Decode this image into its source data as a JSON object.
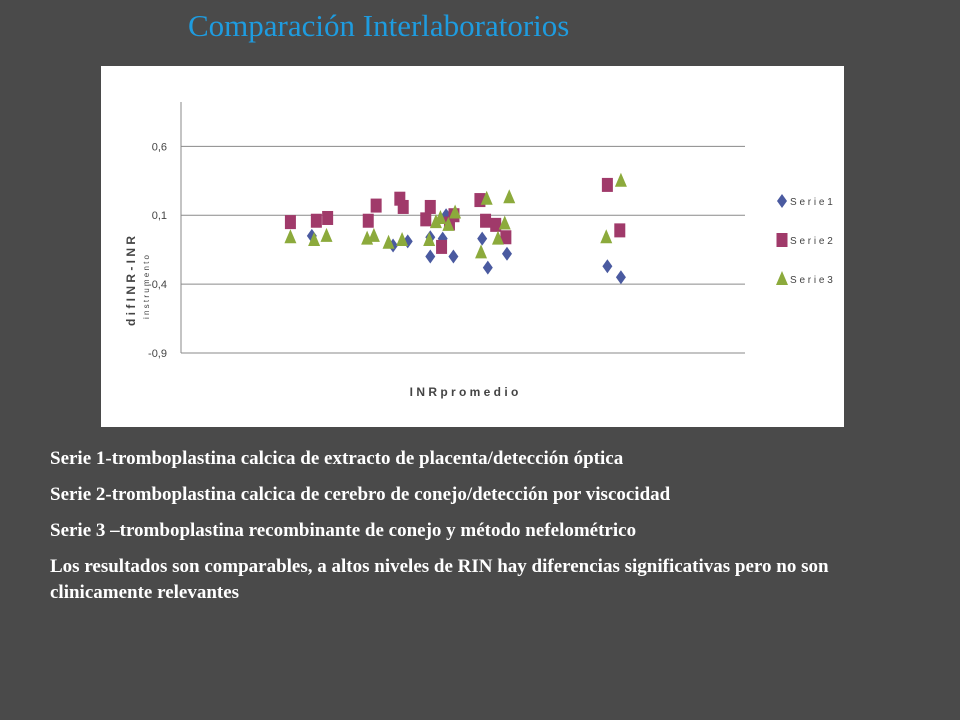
{
  "slide": {
    "title": "Comparación   Interlaboratorios"
  },
  "chart_data": {
    "type": "scatter",
    "title": "",
    "xlabel": "I N R  p r o m e d i o",
    "ylabel": "d i f  I N R  -  I N R",
    "ylabel_sub": "i n s t r u m e n t o",
    "xlim": [
      0,
      100
    ],
    "ylim": [
      -0.9,
      0.9
    ],
    "yticks": [
      0.6,
      0.1,
      -0.4,
      -0.9
    ],
    "ytick_labels": [
      "0,6",
      "0,1",
      "-0,4",
      "-0,9"
    ],
    "grid": "horizontal",
    "legend_position": "right",
    "series": [
      {
        "name": "S e r i e 1",
        "marker": "diamond",
        "color": "#4a5aa0",
        "points": [
          {
            "x": 23.2,
            "y": -0.05
          },
          {
            "x": 37.6,
            "y": -0.12
          },
          {
            "x": 40.2,
            "y": -0.09
          },
          {
            "x": 44.2,
            "y": -0.06
          },
          {
            "x": 44.2,
            "y": -0.2
          },
          {
            "x": 46.4,
            "y": -0.07
          },
          {
            "x": 47.0,
            "y": 0.1
          },
          {
            "x": 48.3,
            "y": -0.2
          },
          {
            "x": 53.4,
            "y": -0.07
          },
          {
            "x": 54.4,
            "y": -0.28
          },
          {
            "x": 57.8,
            "y": -0.18
          },
          {
            "x": 75.6,
            "y": -0.27
          },
          {
            "x": 78.0,
            "y": -0.35
          }
        ]
      },
      {
        "name": "S e r i e 2",
        "marker": "square",
        "color": "#a03a6a",
        "points": [
          {
            "x": 19.4,
            "y": 0.05
          },
          {
            "x": 24.0,
            "y": 0.06
          },
          {
            "x": 26.0,
            "y": 0.08
          },
          {
            "x": 33.2,
            "y": 0.06
          },
          {
            "x": 34.6,
            "y": 0.17
          },
          {
            "x": 38.8,
            "y": 0.22
          },
          {
            "x": 39.4,
            "y": 0.16
          },
          {
            "x": 43.4,
            "y": 0.07
          },
          {
            "x": 44.2,
            "y": 0.16
          },
          {
            "x": 46.2,
            "y": -0.13
          },
          {
            "x": 47.6,
            "y": 0.04
          },
          {
            "x": 48.4,
            "y": 0.1
          },
          {
            "x": 53.0,
            "y": 0.21
          },
          {
            "x": 54.0,
            "y": 0.06
          },
          {
            "x": 55.8,
            "y": 0.03
          },
          {
            "x": 57.6,
            "y": -0.06
          },
          {
            "x": 75.6,
            "y": 0.32
          },
          {
            "x": 77.8,
            "y": -0.01
          }
        ]
      },
      {
        "name": "S e r i e 3",
        "marker": "triangle",
        "color": "#8caa3c",
        "points": [
          {
            "x": 19.4,
            "y": -0.06
          },
          {
            "x": 23.6,
            "y": -0.08
          },
          {
            "x": 25.8,
            "y": -0.05
          },
          {
            "x": 33.0,
            "y": -0.07
          },
          {
            "x": 34.2,
            "y": -0.05
          },
          {
            "x": 36.8,
            "y": -0.1
          },
          {
            "x": 39.2,
            "y": -0.08
          },
          {
            "x": 44.0,
            "y": -0.08
          },
          {
            "x": 45.2,
            "y": 0.05
          },
          {
            "x": 46.0,
            "y": 0.08
          },
          {
            "x": 47.4,
            "y": 0.03
          },
          {
            "x": 48.6,
            "y": 0.12
          },
          {
            "x": 53.2,
            "y": -0.17
          },
          {
            "x": 54.2,
            "y": 0.22
          },
          {
            "x": 56.2,
            "y": -0.07
          },
          {
            "x": 57.4,
            "y": 0.04
          },
          {
            "x": 58.2,
            "y": 0.23
          },
          {
            "x": 75.4,
            "y": -0.06
          },
          {
            "x": 78.0,
            "y": 0.35
          }
        ]
      }
    ]
  },
  "notes": {
    "line1": "Serie 1-tromboplastina calcica de extracto de placenta/detección óptica",
    "line2": "Serie 2-tromboplastina calcica de cerebro de conejo/detección por viscocidad",
    "line3": "Serie 3 –tromboplastina recombinante de conejo y método nefelométrico",
    "line4": "Los resultados son comparables, a altos niveles de RIN hay diferencias significativas pero no son clinicamente relevantes"
  }
}
